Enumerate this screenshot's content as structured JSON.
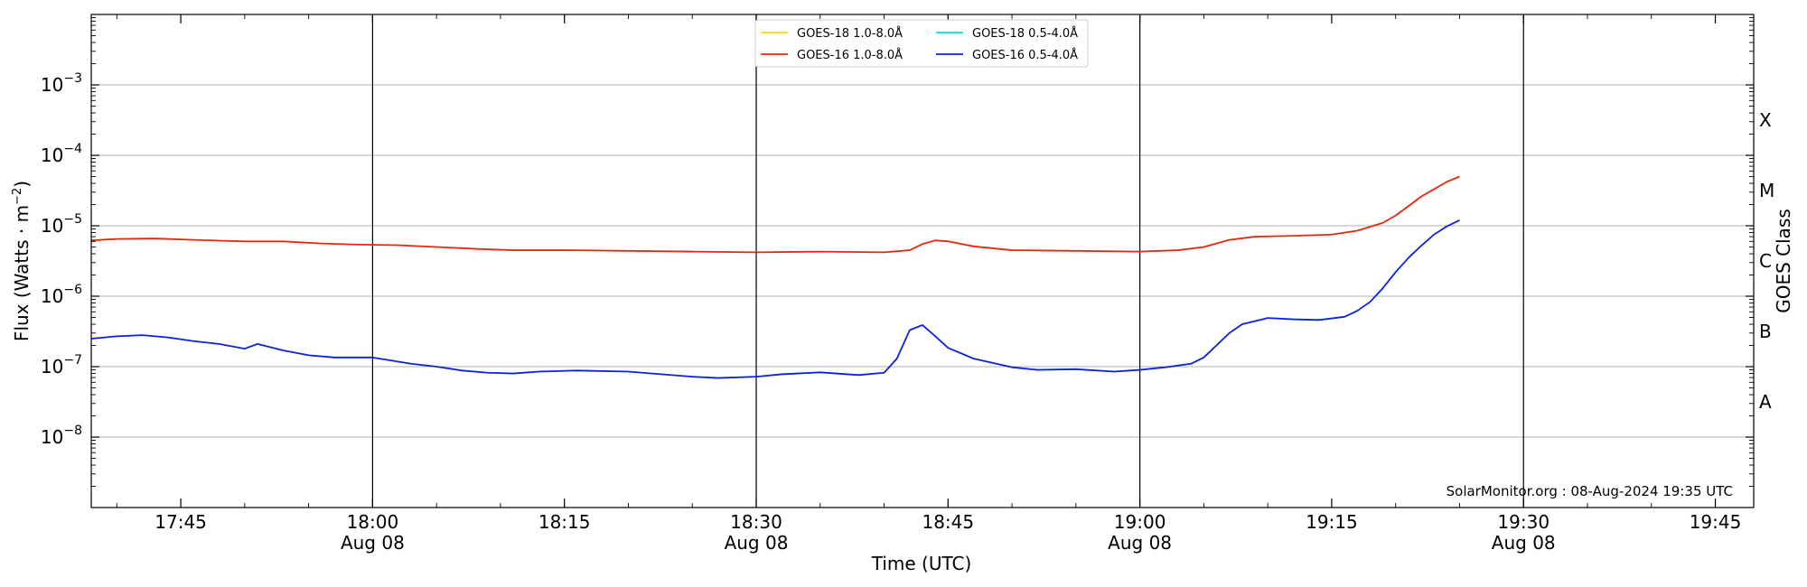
{
  "chart_data": {
    "type": "line",
    "x_unit": "UTC time (HH:MM) on 08-Aug-2024",
    "xlim": [
      "17:38",
      "19:48"
    ],
    "ylim": [
      1e-09,
      0.01
    ],
    "yscale": "log",
    "xlabel": "Time (UTC)",
    "ylabel_main": "Flux (Watts · m",
    "ylabel_exp": "−2",
    "ylabel_end": ")",
    "right_axis_label": "GOES Class",
    "x_ticks": [
      {
        "time": "17:45",
        "label": "17:45",
        "sublabel": ""
      },
      {
        "time": "18:00",
        "label": "18:00",
        "sublabel": "Aug 08"
      },
      {
        "time": "18:15",
        "label": "18:15",
        "sublabel": ""
      },
      {
        "time": "18:30",
        "label": "18:30",
        "sublabel": "Aug 08"
      },
      {
        "time": "18:45",
        "label": "18:45",
        "sublabel": ""
      },
      {
        "time": "19:00",
        "label": "19:00",
        "sublabel": "Aug 08"
      },
      {
        "time": "19:15",
        "label": "19:15",
        "sublabel": ""
      },
      {
        "time": "19:30",
        "label": "19:30",
        "sublabel": "Aug 08"
      },
      {
        "time": "19:45",
        "label": "19:45",
        "sublabel": ""
      }
    ],
    "vertical_lines": [
      "18:00",
      "18:30",
      "19:00",
      "19:30"
    ],
    "y_ticks": [
      {
        "value": 1e-08,
        "base": "10",
        "exp": "−8"
      },
      {
        "value": 1e-07,
        "base": "10",
        "exp": "−7"
      },
      {
        "value": 1e-06,
        "base": "10",
        "exp": "−6"
      },
      {
        "value": 1e-05,
        "base": "10",
        "exp": "−5"
      },
      {
        "value": 0.0001,
        "base": "10",
        "exp": "−4"
      },
      {
        "value": 0.001,
        "base": "10",
        "exp": "−3"
      }
    ],
    "goes_classes": [
      {
        "label": "A",
        "value": 3.16e-08
      },
      {
        "label": "B",
        "value": 3.16e-07
      },
      {
        "label": "C",
        "value": 3.16e-06
      },
      {
        "label": "M",
        "value": 3.16e-05
      },
      {
        "label": "X",
        "value": 0.000316
      }
    ],
    "grid": "horizontal",
    "legend_position": "top-center",
    "watermark": "SolarMonitor.org : 08-Aug-2024 19:35 UTC",
    "series": [
      {
        "name": "GOES-18 1.0-8.0Å",
        "color": "#ffd700",
        "points": []
      },
      {
        "name": "GOES-18 0.5-4.0Å",
        "color": "#00e5ee",
        "points": []
      },
      {
        "name": "GOES-16 1.0-8.0Å",
        "color": "#e8270a",
        "points": [
          [
            "17:38",
            6.2e-06
          ],
          [
            "17:40",
            6.5e-06
          ],
          [
            "17:43",
            6.6e-06
          ],
          [
            "17:46",
            6.3e-06
          ],
          [
            "17:50",
            6e-06
          ],
          [
            "17:53",
            6e-06
          ],
          [
            "17:56",
            5.6e-06
          ],
          [
            "17:59",
            5.4e-06
          ],
          [
            "18:02",
            5.3e-06
          ],
          [
            "18:05",
            5e-06
          ],
          [
            "18:08",
            4.7e-06
          ],
          [
            "18:11",
            4.5e-06
          ],
          [
            "18:15",
            4.5e-06
          ],
          [
            "18:20",
            4.4e-06
          ],
          [
            "18:25",
            4.3e-06
          ],
          [
            "18:30",
            4.2e-06
          ],
          [
            "18:35",
            4.3e-06
          ],
          [
            "18:40",
            4.2e-06
          ],
          [
            "18:42",
            4.5e-06
          ],
          [
            "18:43",
            5.5e-06
          ],
          [
            "18:44",
            6.2e-06
          ],
          [
            "18:45",
            6e-06
          ],
          [
            "18:47",
            5.1e-06
          ],
          [
            "18:50",
            4.5e-06
          ],
          [
            "18:55",
            4.4e-06
          ],
          [
            "19:00",
            4.3e-06
          ],
          [
            "19:03",
            4.5e-06
          ],
          [
            "19:05",
            5e-06
          ],
          [
            "19:07",
            6.3e-06
          ],
          [
            "19:09",
            7e-06
          ],
          [
            "19:12",
            7.2e-06
          ],
          [
            "19:15",
            7.5e-06
          ],
          [
            "19:17",
            8.5e-06
          ],
          [
            "19:19",
            1.1e-05
          ],
          [
            "19:20",
            1.4e-05
          ],
          [
            "19:21",
            1.9e-05
          ],
          [
            "19:22",
            2.6e-05
          ],
          [
            "19:23",
            3.3e-05
          ],
          [
            "19:24",
            4.2e-05
          ],
          [
            "19:25",
            5e-05
          ]
        ]
      },
      {
        "name": "GOES-16 0.5-4.0Å",
        "color": "#0a22dd",
        "points": [
          [
            "17:38",
            2.5e-07
          ],
          [
            "17:40",
            2.7e-07
          ],
          [
            "17:42",
            2.8e-07
          ],
          [
            "17:44",
            2.6e-07
          ],
          [
            "17:46",
            2.3e-07
          ],
          [
            "17:48",
            2.1e-07
          ],
          [
            "17:50",
            1.8e-07
          ],
          [
            "17:51",
            2.1e-07
          ],
          [
            "17:53",
            1.7e-07
          ],
          [
            "17:55",
            1.45e-07
          ],
          [
            "17:57",
            1.35e-07
          ],
          [
            "18:00",
            1.35e-07
          ],
          [
            "18:03",
            1.1e-07
          ],
          [
            "18:05",
            1e-07
          ],
          [
            "18:07",
            8.8e-08
          ],
          [
            "18:09",
            8.2e-08
          ],
          [
            "18:11",
            8e-08
          ],
          [
            "18:13",
            8.5e-08
          ],
          [
            "18:16",
            8.8e-08
          ],
          [
            "18:20",
            8.5e-08
          ],
          [
            "18:25",
            7.2e-08
          ],
          [
            "18:27",
            6.9e-08
          ],
          [
            "18:30",
            7.2e-08
          ],
          [
            "18:32",
            7.8e-08
          ],
          [
            "18:35",
            8.3e-08
          ],
          [
            "18:38",
            7.6e-08
          ],
          [
            "18:40",
            8.2e-08
          ],
          [
            "18:41",
            1.3e-07
          ],
          [
            "18:42",
            3.3e-07
          ],
          [
            "18:43",
            3.9e-07
          ],
          [
            "18:44",
            2.7e-07
          ],
          [
            "18:45",
            1.85e-07
          ],
          [
            "18:47",
            1.3e-07
          ],
          [
            "18:50",
            9.8e-08
          ],
          [
            "18:52",
            9e-08
          ],
          [
            "18:55",
            9.2e-08
          ],
          [
            "18:58",
            8.5e-08
          ],
          [
            "19:00",
            9e-08
          ],
          [
            "19:02",
            9.8e-08
          ],
          [
            "19:04",
            1.1e-07
          ],
          [
            "19:05",
            1.35e-07
          ],
          [
            "19:07",
            3e-07
          ],
          [
            "19:08",
            4e-07
          ],
          [
            "19:10",
            4.9e-07
          ],
          [
            "19:12",
            4.7e-07
          ],
          [
            "19:14",
            4.6e-07
          ],
          [
            "19:16",
            5.1e-07
          ],
          [
            "19:17",
            6.2e-07
          ],
          [
            "19:18",
            8.3e-07
          ],
          [
            "19:19",
            1.3e-06
          ],
          [
            "19:20",
            2.2e-06
          ],
          [
            "19:21",
            3.5e-06
          ],
          [
            "19:22",
            5.2e-06
          ],
          [
            "19:23",
            7.5e-06
          ],
          [
            "19:24",
            9.8e-06
          ],
          [
            "19:25",
            1.2e-05
          ]
        ]
      }
    ]
  }
}
